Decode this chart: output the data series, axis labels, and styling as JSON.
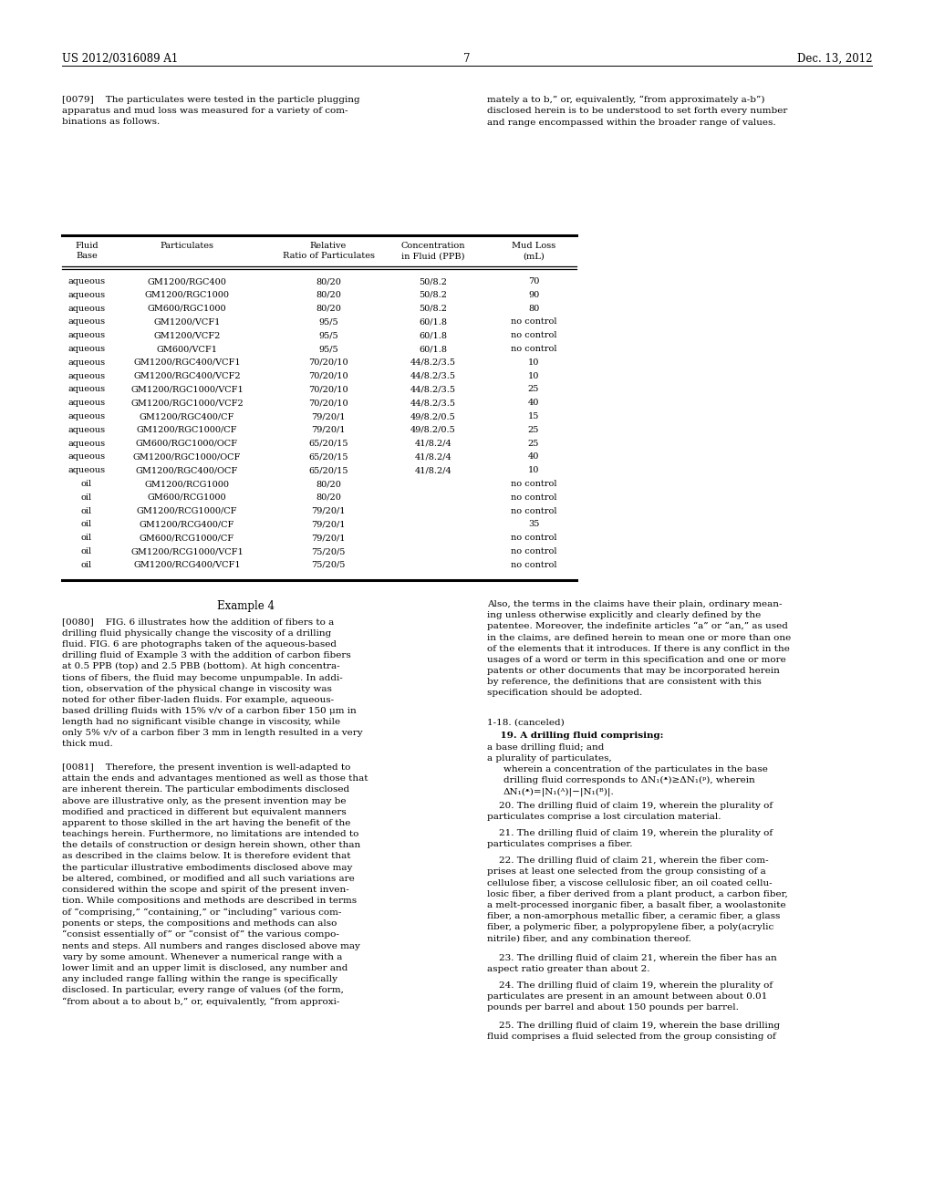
{
  "background_color": "#ffffff",
  "header_left": "US 2012/0316089 A1",
  "header_center": "7",
  "header_right": "Dec. 13, 2012",
  "table_data": [
    [
      "aqueous",
      "GM1200/RGC400",
      "80/20",
      "50/8.2",
      "70"
    ],
    [
      "aqueous",
      "GM1200/RGC1000",
      "80/20",
      "50/8.2",
      "90"
    ],
    [
      "aqueous",
      "GM600/RGC1000",
      "80/20",
      "50/8.2",
      "80"
    ],
    [
      "aqueous",
      "GM1200/VCF1",
      "95/5",
      "60/1.8",
      "no control"
    ],
    [
      "aqueous",
      "GM1200/VCF2",
      "95/5",
      "60/1.8",
      "no control"
    ],
    [
      "aqueous",
      "GM600/VCF1",
      "95/5",
      "60/1.8",
      "no control"
    ],
    [
      "aqueous",
      "GM1200/RGC400/VCF1",
      "70/20/10",
      "44/8.2/3.5",
      "10"
    ],
    [
      "aqueous",
      "GM1200/RGC400/VCF2",
      "70/20/10",
      "44/8.2/3.5",
      "10"
    ],
    [
      "aqueous",
      "GM1200/RGC1000/VCF1",
      "70/20/10",
      "44/8.2/3.5",
      "25"
    ],
    [
      "aqueous",
      "GM1200/RGC1000/VCF2",
      "70/20/10",
      "44/8.2/3.5",
      "40"
    ],
    [
      "aqueous",
      "GM1200/RGC400/CF",
      "79/20/1",
      "49/8.2/0.5",
      "15"
    ],
    [
      "aqueous",
      "GM1200/RGC1000/CF",
      "79/20/1",
      "49/8.2/0.5",
      "25"
    ],
    [
      "aqueous",
      "GM600/RGC1000/OCF",
      "65/20/15",
      "41/8.2/4",
      "25"
    ],
    [
      "aqueous",
      "GM1200/RGC1000/OCF",
      "65/20/15",
      "41/8.2/4",
      "40"
    ],
    [
      "aqueous",
      "GM1200/RGC400/OCF",
      "65/20/15",
      "41/8.2/4",
      "10"
    ],
    [
      "oil",
      "GM1200/RCG1000",
      "80/20",
      "",
      "no control"
    ],
    [
      "oil",
      "GM600/RCG1000",
      "80/20",
      "",
      "no control"
    ],
    [
      "oil",
      "GM1200/RCG1000/CF",
      "79/20/1",
      "",
      "no control"
    ],
    [
      "oil",
      "GM1200/RCG400/CF",
      "79/20/1",
      "",
      "35"
    ],
    [
      "oil",
      "GM600/RCG1000/CF",
      "79/20/1",
      "",
      "no control"
    ],
    [
      "oil",
      "GM1200/RCG1000/VCF1",
      "75/20/5",
      "",
      "no control"
    ],
    [
      "oil",
      "GM1200/RCG400/VCF1",
      "75/20/5",
      "",
      "no control"
    ]
  ]
}
